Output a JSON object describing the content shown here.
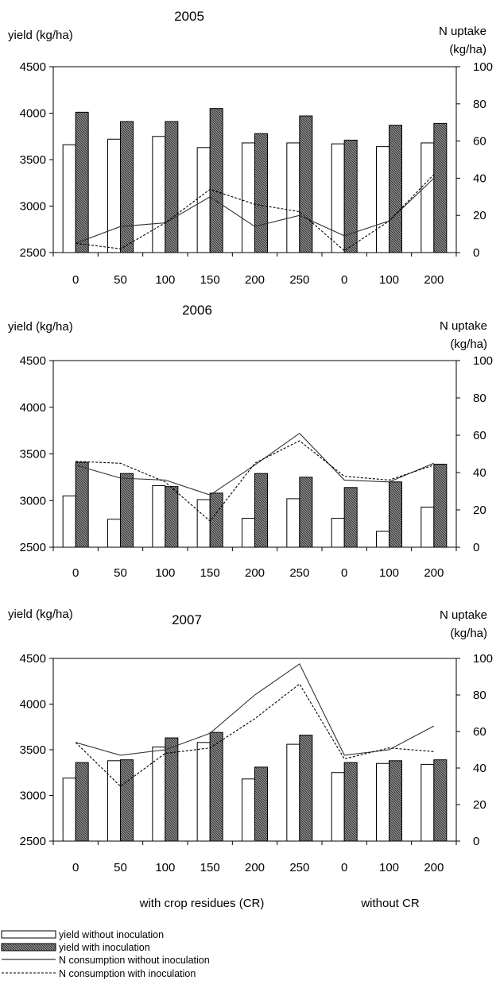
{
  "chart_data": [
    {
      "type": "bar",
      "title": "2005",
      "ylabel_left": "yield (kg/ha)",
      "ylabel_right": [
        "N uptake",
        "(kg/ha)"
      ],
      "ylim_left": [
        2500,
        4500
      ],
      "ylim_right": [
        0,
        100
      ],
      "yticks_left": [
        "2500",
        "3000",
        "3500",
        "4000",
        "4500"
      ],
      "yticks_right": [
        "0",
        "20",
        "40",
        "60",
        "80",
        "100"
      ],
      "categories": [
        "0",
        "50",
        "100",
        "150",
        "200",
        "250",
        "0",
        "100",
        "200"
      ],
      "series": [
        {
          "name": "yield without inoculation",
          "type": "bar",
          "axis": "left",
          "values": [
            3660,
            3720,
            3750,
            3630,
            3680,
            3680,
            3670,
            3640,
            3680
          ]
        },
        {
          "name": "yield with inoculation",
          "type": "bar",
          "axis": "left",
          "values": [
            4010,
            3910,
            3910,
            4050,
            3780,
            3970,
            3710,
            3870,
            3890
          ]
        },
        {
          "name": "N consumption without inoculation",
          "type": "line",
          "axis": "right",
          "values": [
            5,
            14,
            16,
            30,
            14,
            20,
            9,
            17,
            40
          ]
        },
        {
          "name": "N consumption with inoculation",
          "type": "line",
          "axis": "right",
          "values": [
            5,
            2,
            16,
            34,
            26,
            22,
            1,
            17,
            42
          ]
        }
      ]
    },
    {
      "type": "bar",
      "title": "2006",
      "ylabel_left": "yield (kg/ha)",
      "ylabel_right": [
        "N uptake",
        "(kg/ha)"
      ],
      "ylim_left": [
        2500,
        4500
      ],
      "ylim_right": [
        0,
        100
      ],
      "yticks_left": [
        "2500",
        "3000",
        "3500",
        "4000",
        "4500"
      ],
      "yticks_right": [
        "0",
        "20",
        "40",
        "60",
        "80",
        "100"
      ],
      "categories": [
        "0",
        "50",
        "100",
        "150",
        "200",
        "250",
        "0",
        "100",
        "200"
      ],
      "series": [
        {
          "name": "yield without inoculation",
          "type": "bar",
          "axis": "left",
          "values": [
            3050,
            2800,
            3160,
            3010,
            2810,
            3020,
            2810,
            2670,
            2930
          ]
        },
        {
          "name": "yield with inoculation",
          "type": "bar",
          "axis": "left",
          "values": [
            3410,
            3290,
            3150,
            3080,
            3290,
            3250,
            3140,
            3200,
            3390
          ]
        },
        {
          "name": "N consumption without inoculation",
          "type": "line",
          "axis": "right",
          "values": [
            44,
            37,
            36,
            28,
            44,
            61,
            36,
            35,
            45
          ]
        },
        {
          "name": "N consumption with inoculation",
          "type": "line",
          "axis": "right",
          "values": [
            46,
            45,
            35,
            14,
            45,
            57,
            38,
            36,
            44
          ]
        }
      ]
    },
    {
      "type": "bar",
      "title": "2007",
      "ylabel_left": "yield (kg/ha)",
      "ylabel_right": [
        "N uptake",
        "(kg/ha)"
      ],
      "ylim_left": [
        2500,
        4500
      ],
      "ylim_right": [
        0,
        100
      ],
      "yticks_left": [
        "2500",
        "3000",
        "3500",
        "4000",
        "4500"
      ],
      "yticks_right": [
        "0",
        "20",
        "40",
        "60",
        "80",
        "100"
      ],
      "categories": [
        "0",
        "50",
        "100",
        "150",
        "200",
        "250",
        "0",
        "100",
        "200"
      ],
      "series": [
        {
          "name": "yield without inoculation",
          "type": "bar",
          "axis": "left",
          "values": [
            3190,
            3380,
            3530,
            3580,
            3180,
            3560,
            3250,
            3350,
            3340
          ]
        },
        {
          "name": "yield with inoculation",
          "type": "bar",
          "axis": "left",
          "values": [
            3360,
            3390,
            3630,
            3690,
            3310,
            3660,
            3360,
            3380,
            3390
          ]
        },
        {
          "name": "N consumption without inoculation",
          "type": "line",
          "axis": "right",
          "values": [
            54,
            47,
            50,
            59,
            80,
            97,
            47,
            50,
            63
          ]
        },
        {
          "name": "N consumption with inoculation",
          "type": "line",
          "axis": "right",
          "values": [
            54,
            30,
            48,
            51,
            67,
            86,
            45,
            51,
            49
          ]
        }
      ]
    }
  ],
  "group_labels": [
    "with crop residues (CR)",
    "without CR"
  ],
  "legend": [
    {
      "label": "yield without inoculation",
      "kind": "bar-empty"
    },
    {
      "label": "yield with inoculation",
      "kind": "bar-hatched"
    },
    {
      "label": "N consumption without inoculation",
      "kind": "line-solid"
    },
    {
      "label": "N consumption with inoculation",
      "kind": "line-dashed"
    }
  ]
}
